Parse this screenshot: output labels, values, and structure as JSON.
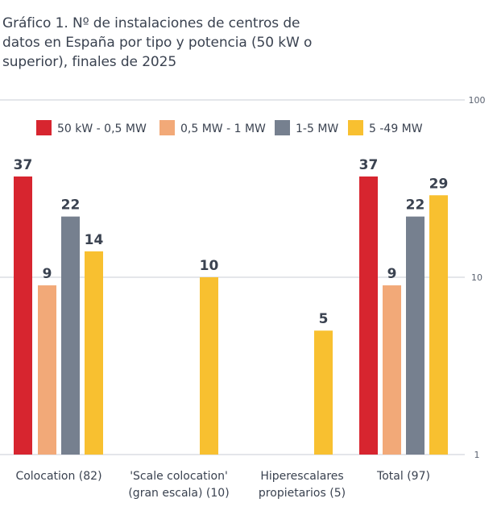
{
  "title": "Gráfico 1. Nº de instalaciones de centros de datos en España por tipo y potencia (50 kW o superior), finales de 2025",
  "chart_data": {
    "type": "bar",
    "scale": "log",
    "ylim": [
      1,
      100
    ],
    "yticks": [
      "1",
      "10",
      "100"
    ],
    "categories": [
      [
        "Colocation (82)"
      ],
      [
        "'Scale colocation'",
        "(gran escala) (10)"
      ],
      [
        "Hiperescalares",
        "propietarios (5)"
      ],
      [
        "Total (97)"
      ]
    ],
    "series": [
      {
        "name": "50 kW - 0,5 MW",
        "color": "#d7252f",
        "values": [
          37,
          null,
          null,
          37
        ]
      },
      {
        "name": "0,5 MW - 1 MW",
        "color": "#f2a978",
        "values": [
          9,
          null,
          null,
          9
        ]
      },
      {
        "name": "1-5 MW",
        "color": "#76808f",
        "values": [
          22,
          null,
          null,
          22
        ]
      },
      {
        "name": "5 -49 MW",
        "color": "#f8c030",
        "values": [
          14,
          10,
          5,
          29
        ]
      }
    ],
    "legend_position": "top",
    "grid": true
  }
}
